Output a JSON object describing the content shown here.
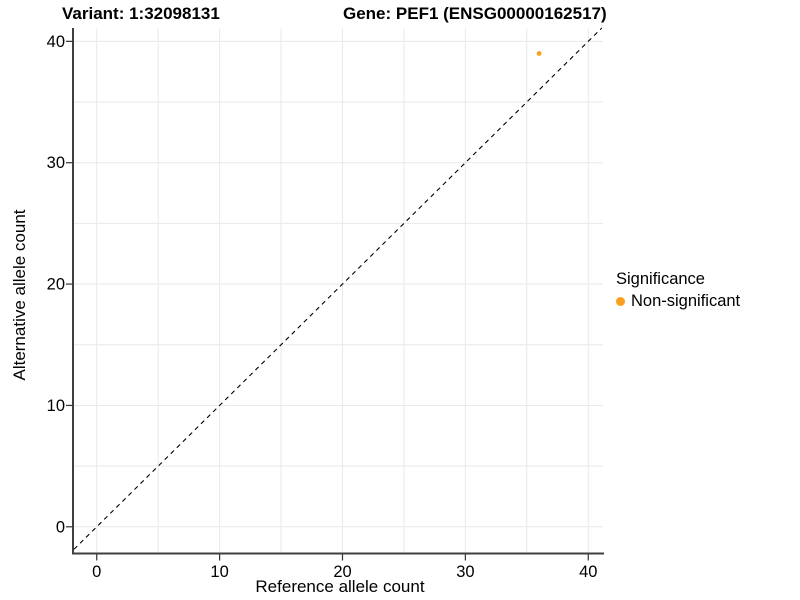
{
  "title": {
    "variant": "Variant: 1:32098131",
    "gene": "Gene: PEF1 (ENSG00000162517)"
  },
  "chart_data": {
    "type": "scatter",
    "title": "Variant: 1:32098131   Gene: PEF1 (ENSG00000162517)",
    "xlabel": "Reference allele count",
    "ylabel": "Alternative allele count",
    "x_ticks": [
      0,
      10,
      20,
      30,
      40
    ],
    "y_ticks": [
      0,
      10,
      20,
      30,
      40
    ],
    "grid": true,
    "grid_step": 5,
    "xlim": [
      -1.85,
      41.2
    ],
    "ylim": [
      -2.2,
      41.1
    ],
    "series": [
      {
        "name": "Non-significant",
        "color": "#FAA01E",
        "points": [
          {
            "x": 36,
            "y": 39
          }
        ]
      }
    ],
    "reference_line": {
      "type": "identity",
      "slope": 1,
      "intercept": 0,
      "style": "dashed",
      "color": "#000000"
    },
    "legend_position": "right"
  },
  "legend": {
    "title": "Significance",
    "items": [
      {
        "label": "Non-significant",
        "color": "#FAA01E"
      }
    ]
  },
  "colors": {
    "gridline": "#E9E9E9",
    "axis_line": "#3F3F3F",
    "tick": "#333333",
    "tick_label": "#000000"
  }
}
